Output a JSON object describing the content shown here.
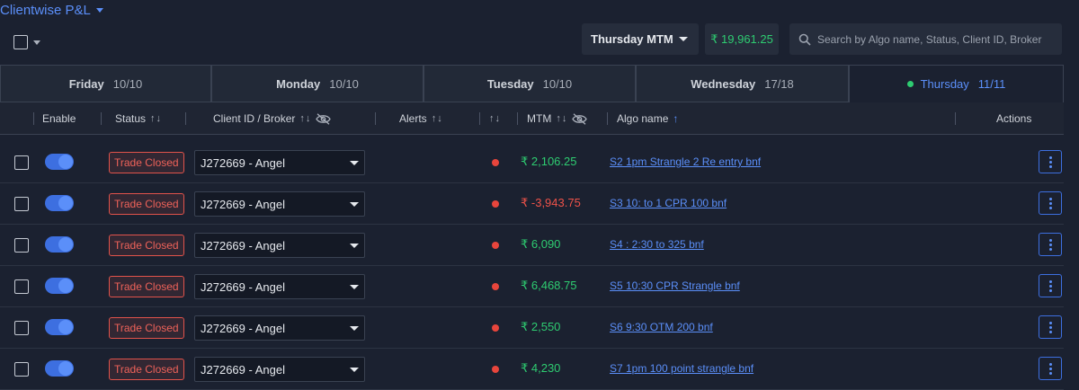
{
  "page": {
    "title": "Clientwise P&L",
    "mtm_select": "Thursday MTM",
    "mtm_total": "₹ 19,961.25",
    "search_placeholder": "Search by Algo name, Status, Client ID, Broker"
  },
  "tabs": [
    {
      "day": "Friday",
      "count": "10/10",
      "active": false
    },
    {
      "day": "Monday",
      "count": "10/10",
      "active": false
    },
    {
      "day": "Tuesday",
      "count": "10/10",
      "active": false
    },
    {
      "day": "Wednesday",
      "count": "17/18",
      "active": false
    },
    {
      "day": "Thursday",
      "count": "11/11",
      "active": true
    }
  ],
  "columns": {
    "enable": "Enable",
    "status": "Status",
    "client": "Client ID / Broker",
    "alerts": "Alerts",
    "mtm": "MTM",
    "algo": "Algo name",
    "actions": "Actions"
  },
  "rows": [
    {
      "status": "Trade Closed",
      "client": "J272669 - Angel",
      "mtm": "₹ 2,106.25",
      "algo": "S2 1pm Strangle 2 Re entry bnf"
    },
    {
      "status": "Trade Closed",
      "client": "J272669 - Angel",
      "mtm": "₹ -3,943.75",
      "algo": "S3 10: to 1 CPR 100 bnf"
    },
    {
      "status": "Trade Closed",
      "client": "J272669 - Angel",
      "mtm": "₹ 6,090",
      "algo": "S4 : 2:30 to 325 bnf"
    },
    {
      "status": "Trade Closed",
      "client": "J272669 - Angel",
      "mtm": "₹ 6,468.75",
      "algo": "S5 10:30 CPR Strangle bnf"
    },
    {
      "status": "Trade Closed",
      "client": "J272669 - Angel",
      "mtm": "₹ 2,550",
      "algo": "S6 9:30 OTM 200 bnf"
    },
    {
      "status": "Trade Closed",
      "client": "J272669 - Angel",
      "mtm": "₹ 4,230",
      "algo": "S7 1pm 100 point strangle bnf"
    }
  ],
  "colors": {
    "accent": "#5b8ff9",
    "positive": "#2ecc71",
    "negative": "#ee5249",
    "status_closed": "#e2534b"
  }
}
